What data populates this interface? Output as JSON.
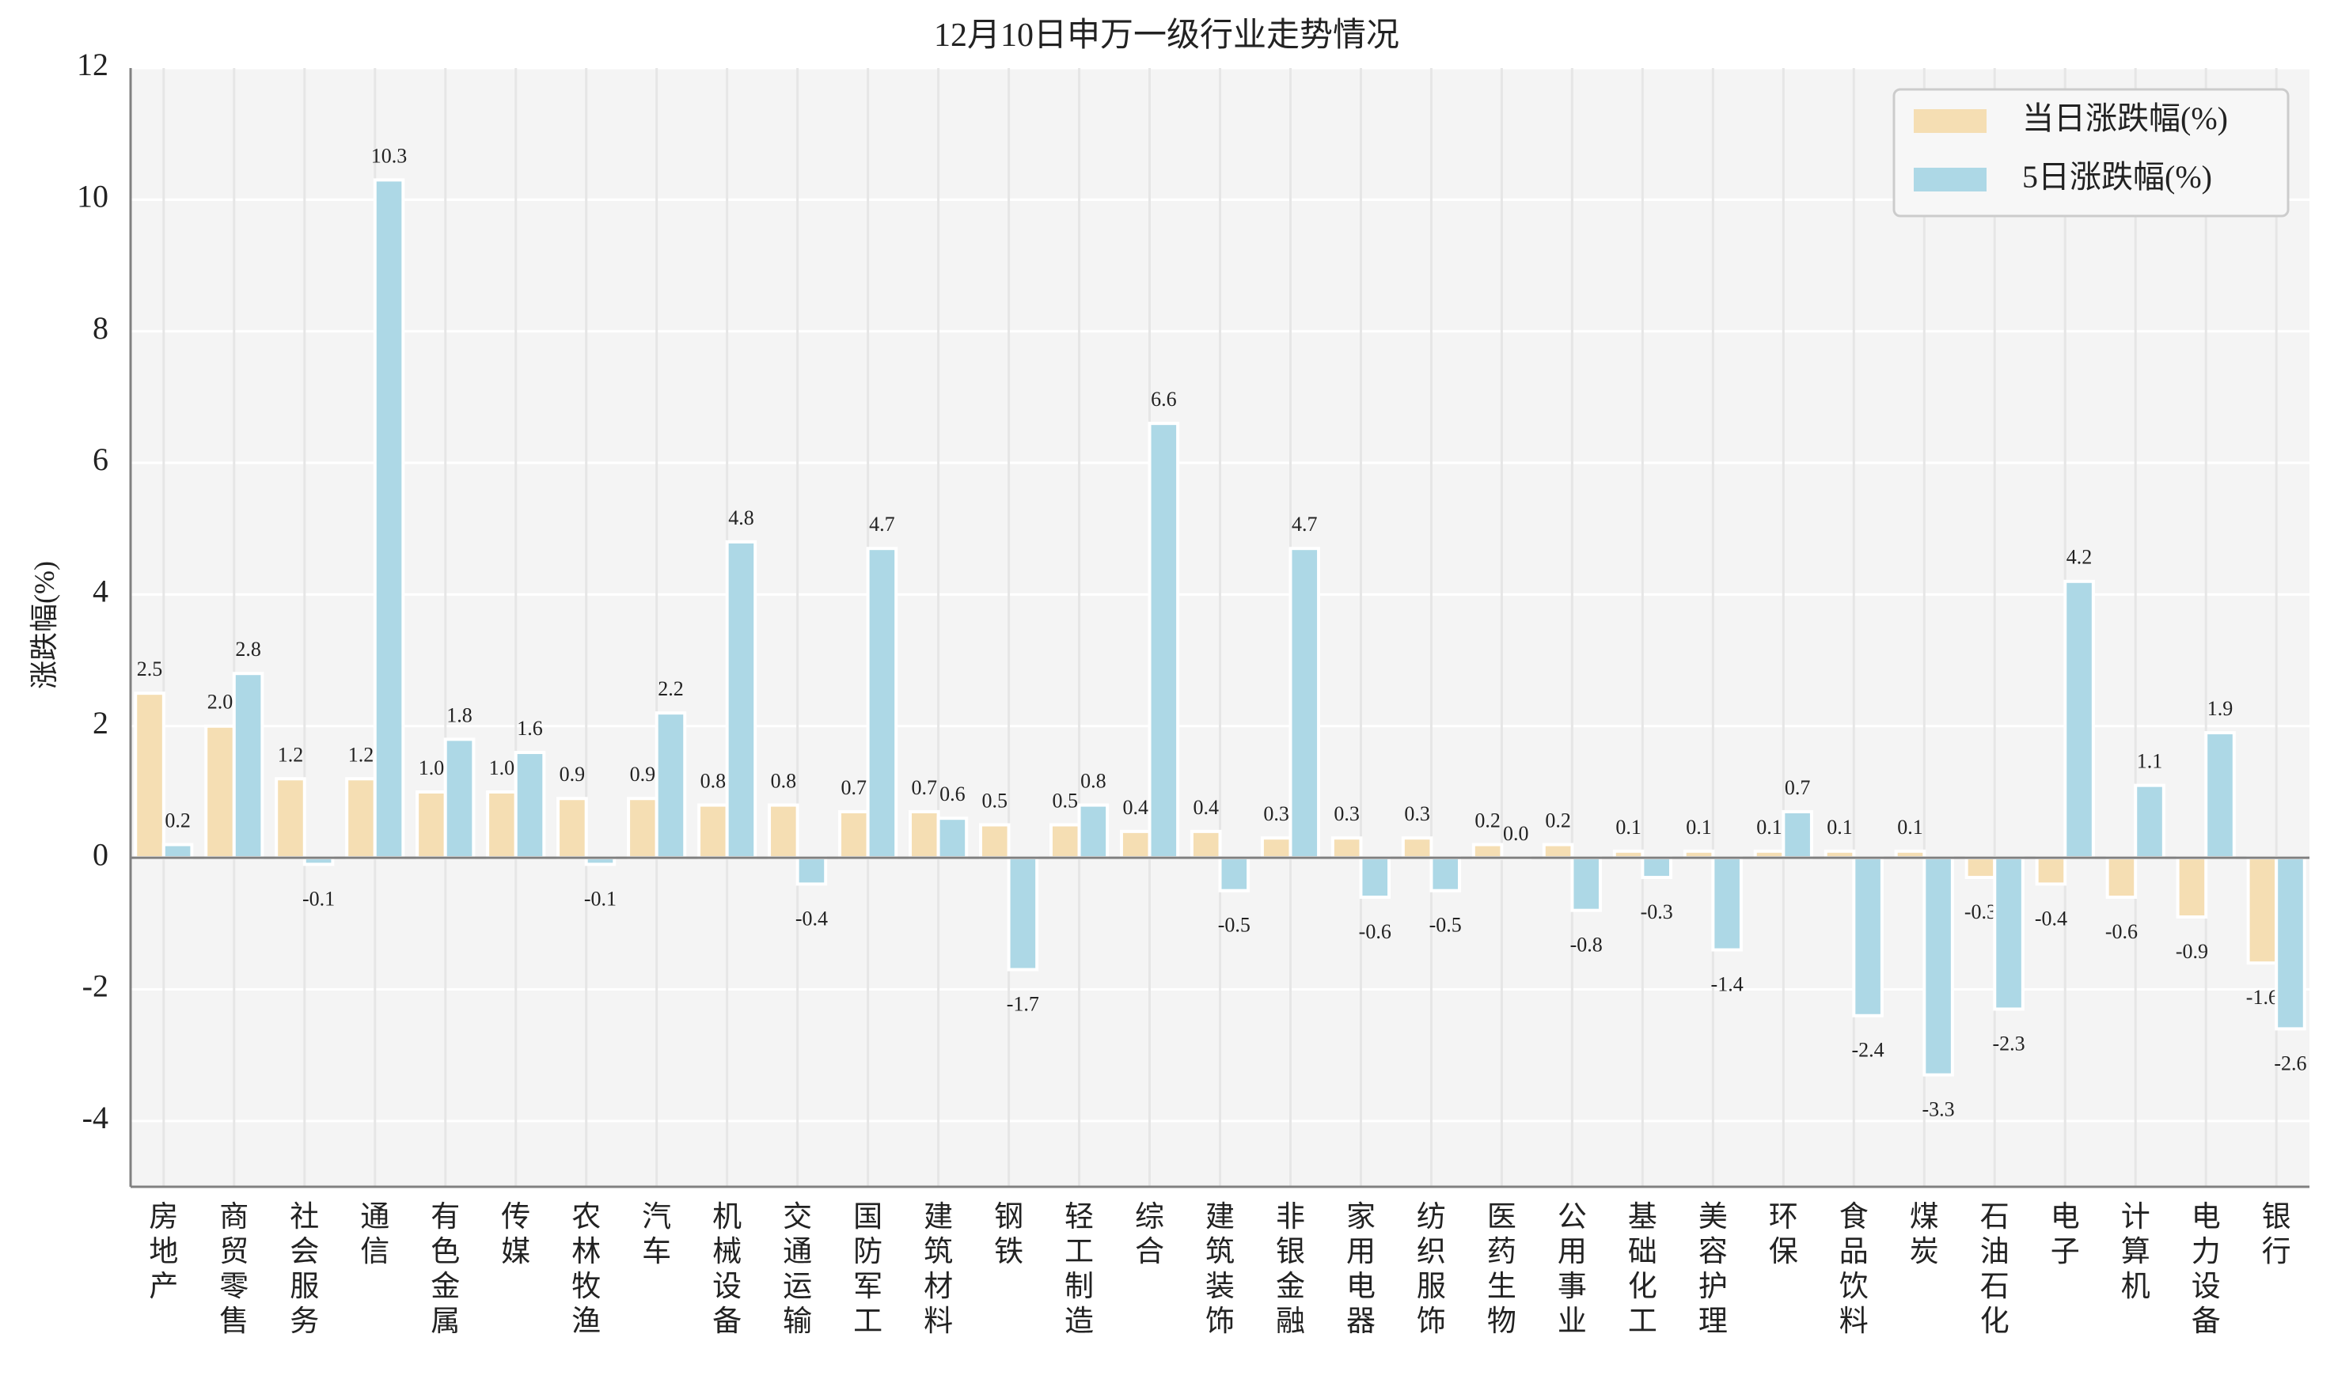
{
  "chart_data": {
    "type": "bar",
    "title": "12月10日申万一级行业走势情况",
    "xlabel": "",
    "ylabel": "涨跌幅(%)",
    "ylim": [
      -5,
      12
    ],
    "yticks": [
      -4,
      -2,
      0,
      2,
      4,
      6,
      8,
      10,
      12
    ],
    "grid": true,
    "legend_position": "top-right",
    "categories": [
      "房地产",
      "商贸零售",
      "社会服务",
      "通信",
      "有色金属",
      "传媒",
      "农林牧渔",
      "汽车",
      "机械设备",
      "交通运输",
      "国防军工",
      "建筑材料",
      "钢铁",
      "轻工制造",
      "综合",
      "建筑装饰",
      "非银金融",
      "家用电器",
      "纺织服饰",
      "医药生物",
      "公用事业",
      "基础化工",
      "美容护理",
      "环保",
      "食品饮料",
      "煤炭",
      "石油石化",
      "电子",
      "计算机",
      "电力设备",
      "银行"
    ],
    "series": [
      {
        "name": "当日涨跌幅(%)",
        "color": "#f5deb3",
        "values": [
          2.5,
          2.0,
          1.2,
          1.2,
          1.0,
          1.0,
          0.9,
          0.9,
          0.8,
          0.8,
          0.7,
          0.7,
          0.5,
          0.5,
          0.4,
          0.4,
          0.3,
          0.3,
          0.3,
          0.2,
          0.2,
          0.1,
          0.1,
          0.1,
          0.1,
          0.1,
          -0.3,
          -0.4,
          -0.6,
          -0.9,
          -1.6
        ]
      },
      {
        "name": "5日涨跌幅(%)",
        "color": "#add8e6",
        "values": [
          0.2,
          2.8,
          -0.1,
          10.3,
          1.8,
          1.6,
          -0.1,
          2.2,
          4.8,
          -0.4,
          4.7,
          0.6,
          -1.7,
          0.8,
          6.6,
          -0.5,
          4.7,
          -0.6,
          -0.5,
          0.0,
          -0.8,
          -0.3,
          -1.4,
          0.7,
          -2.4,
          -3.3,
          -2.3,
          4.2,
          1.1,
          1.9,
          -2.6
        ]
      }
    ]
  }
}
